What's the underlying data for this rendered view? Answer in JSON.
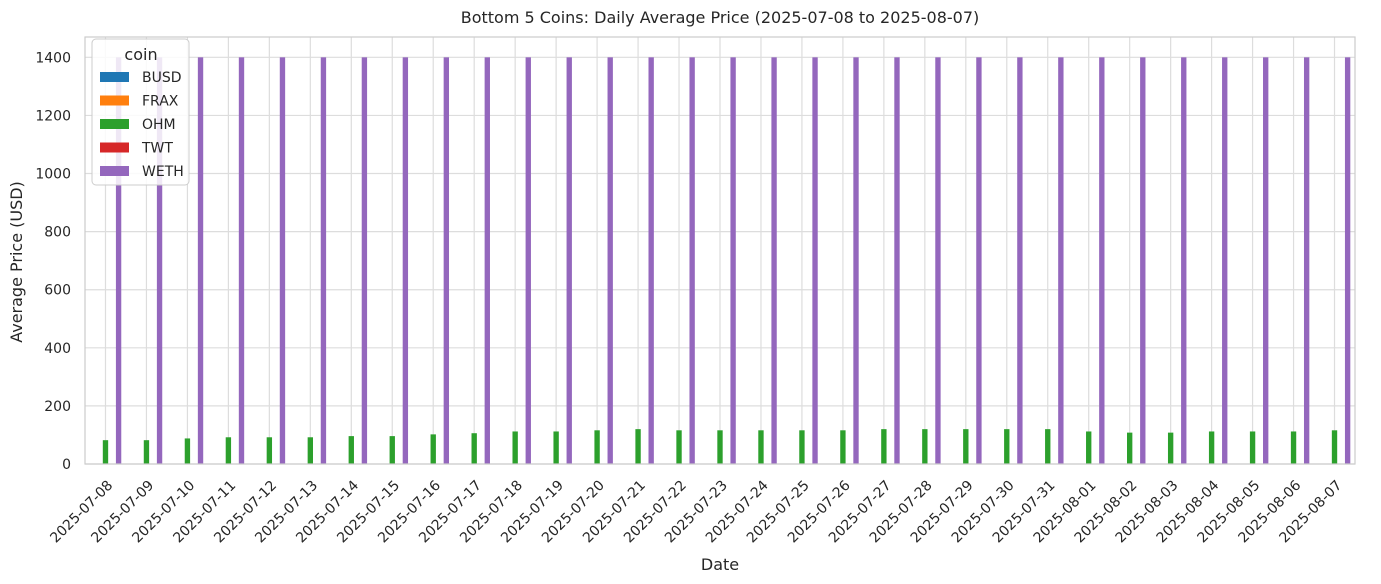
{
  "chart_data": {
    "type": "bar",
    "title": "Bottom 5 Coins: Daily Average Price (2025-07-08 to 2025-08-07)",
    "xlabel": "Date",
    "ylabel": "Average Price (USD)",
    "ylim": [
      0,
      1470
    ],
    "yticks": [
      0,
      200,
      400,
      600,
      800,
      1000,
      1200,
      1400
    ],
    "grid": true,
    "legend_position": "top-left",
    "legend_title": "coin",
    "categories": [
      "2025-07-08",
      "2025-07-09",
      "2025-07-10",
      "2025-07-11",
      "2025-07-12",
      "2025-07-13",
      "2025-07-14",
      "2025-07-15",
      "2025-07-16",
      "2025-07-17",
      "2025-07-18",
      "2025-07-19",
      "2025-07-20",
      "2025-07-21",
      "2025-07-22",
      "2025-07-23",
      "2025-07-24",
      "2025-07-25",
      "2025-07-26",
      "2025-07-27",
      "2025-07-28",
      "2025-07-29",
      "2025-07-30",
      "2025-07-31",
      "2025-08-01",
      "2025-08-02",
      "2025-08-03",
      "2025-08-04",
      "2025-08-05",
      "2025-08-06",
      "2025-08-07"
    ],
    "series": [
      {
        "name": "BUSD",
        "color": "#1f77b4",
        "values": [
          1,
          1,
          1,
          1,
          1,
          1,
          1,
          1,
          1,
          1,
          1,
          1,
          1,
          1,
          1,
          1,
          1,
          1,
          1,
          1,
          1,
          1,
          1,
          1,
          1,
          1,
          1,
          1,
          1,
          1,
          1
        ]
      },
      {
        "name": "FRAX",
        "color": "#ff7f0e",
        "values": [
          1,
          1,
          1,
          1,
          1,
          1,
          1,
          1,
          1,
          1,
          1,
          1,
          1,
          1,
          1,
          1,
          1,
          1,
          1,
          1,
          1,
          1,
          1,
          1,
          1,
          1,
          1,
          1,
          1,
          1,
          1
        ]
      },
      {
        "name": "OHM",
        "color": "#2ca02c",
        "values": [
          82,
          82,
          88,
          92,
          92,
          92,
          96,
          96,
          102,
          106,
          112,
          112,
          116,
          120,
          116,
          116,
          116,
          116,
          116,
          120,
          120,
          120,
          120,
          120,
          112,
          108,
          108,
          112,
          112,
          112,
          116
        ]
      },
      {
        "name": "TWT",
        "color": "#d62728",
        "values": [
          1,
          1,
          1,
          1,
          1,
          1,
          1,
          1,
          1,
          1,
          1,
          1,
          1,
          1,
          1,
          1,
          1,
          1,
          1,
          1,
          1,
          1,
          1,
          1,
          1,
          1,
          1,
          1,
          1,
          1,
          1
        ]
      },
      {
        "name": "WETH",
        "color": "#9467bd",
        "values": [
          1400,
          1400,
          1400,
          1400,
          1400,
          1400,
          1400,
          1400,
          1400,
          1400,
          1400,
          1400,
          1400,
          1400,
          1400,
          1400,
          1400,
          1400,
          1400,
          1400,
          1400,
          1400,
          1400,
          1400,
          1400,
          1400,
          1400,
          1400,
          1400,
          1400,
          1400
        ]
      }
    ]
  }
}
